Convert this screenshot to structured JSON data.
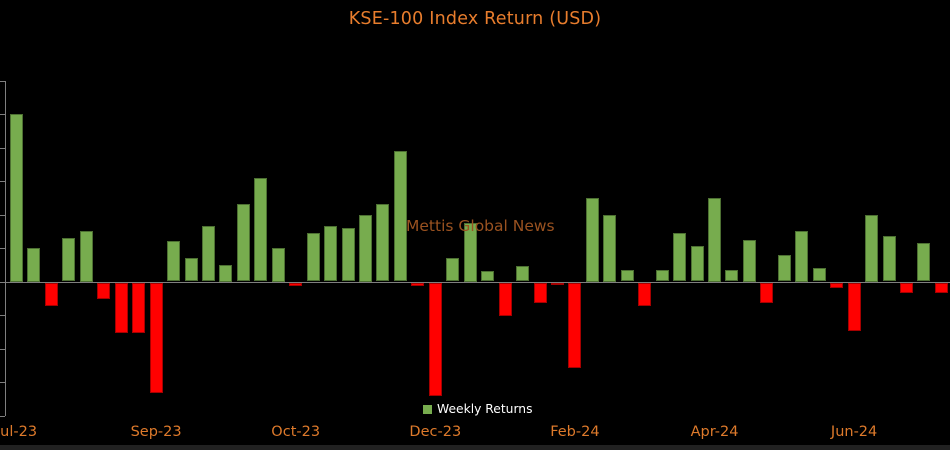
{
  "title": "KSE-100 Index Return (USD)",
  "watermark": {
    "text": "Mettis Global News"
  },
  "legend": {
    "label": "Weekly Returns"
  },
  "colors": {
    "background": "#000000",
    "positive_bar": "#77AC4E",
    "negative_bar": "#FF0000",
    "axis": "#7f7f7f",
    "title_orange": "#E87D2D",
    "x_label_orange": "#DE7A2B",
    "watermark_brown": "#9A5220",
    "legend_text": "#FFFFFF",
    "bottom_strip": "#212121"
  },
  "x_axis": {
    "tick_labels": [
      {
        "week": 1,
        "label": "Jul-23"
      },
      {
        "week": 9,
        "label": "Sep-23"
      },
      {
        "week": 17,
        "label": "Oct-23"
      },
      {
        "week": 25,
        "label": "Dec-23"
      },
      {
        "week": 33,
        "label": "Feb-24"
      },
      {
        "week": 41,
        "label": "Apr-24"
      },
      {
        "week": 49,
        "label": "Jun-24"
      }
    ]
  },
  "chart_data": {
    "type": "bar",
    "title": "KSE-100 Index Return (USD)",
    "xlabel": "",
    "ylabel": "",
    "grid": false,
    "legend_position": "bottom-center",
    "ylim": [
      -4,
      6
    ],
    "y_tick_step": 1,
    "y_tick_labels_visible": false,
    "series": [
      {
        "name": "Weekly Returns",
        "unit": "percent (estimated from unlabeled axis ticks)",
        "values": [
          5.0,
          1.0,
          -0.7,
          1.3,
          1.5,
          -0.5,
          -1.5,
          -1.5,
          -3.3,
          1.2,
          0.7,
          1.65,
          0.5,
          2.3,
          3.1,
          1.0,
          -0.1,
          1.45,
          1.65,
          1.6,
          2.0,
          2.3,
          3.9,
          -0.1,
          -3.4,
          0.7,
          1.75,
          0.3,
          -1.0,
          0.45,
          -0.6,
          -0.05,
          -2.55,
          2.5,
          2.0,
          0.35,
          -0.7,
          0.35,
          1.45,
          1.05,
          2.5,
          0.35,
          1.25,
          -0.6,
          0.8,
          1.5,
          0.4,
          -0.15,
          -1.45,
          2.0,
          1.35,
          -0.3,
          1.15,
          -0.3,
          0.4
        ]
      }
    ],
    "categories_note": "weeks 1-55, Jul-2023 through Jun-2024; x tick labels every 8 weeks"
  }
}
